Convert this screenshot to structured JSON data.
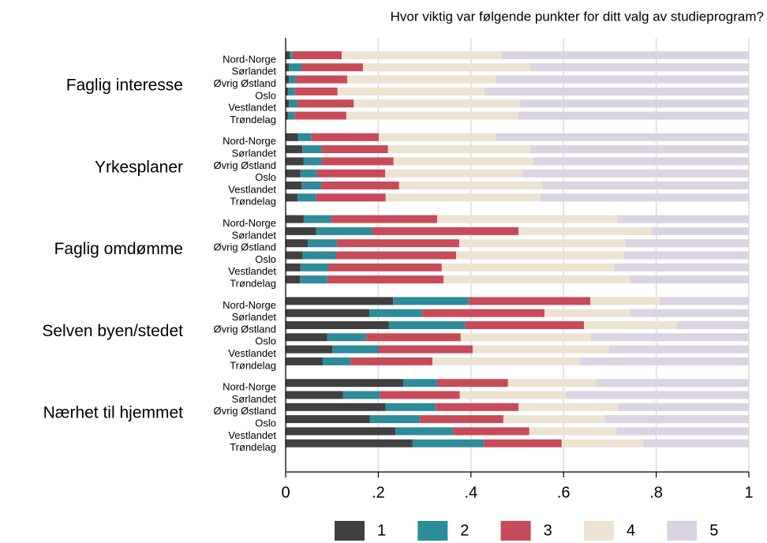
{
  "chart_data": {
    "type": "stacked-bar",
    "title": "Hvor viktig var følgende punkter for ditt valg av studieprogram?",
    "groups": [
      "Faglig interesse",
      "Yrkesplaner",
      "Faglig omdømme",
      "Selven byen/stedet",
      "Nærhet til hjemmet"
    ],
    "categories": [
      "Nord-Norge",
      "Sørlandet",
      "Øvrig Østland",
      "Oslo",
      "Vestlandet",
      "Trøndelag"
    ],
    "xlim": [
      0,
      1
    ],
    "xticks": [
      0,
      {
        "value": 0.2,
        "label": ".2"
      },
      {
        "value": 0.4,
        "label": ".4"
      },
      {
        "value": 0.6,
        "label": ".6"
      },
      {
        "value": 0.8,
        "label": ".8"
      },
      1
    ],
    "grid": true,
    "series": [
      {
        "name": "1",
        "color": "#404040",
        "values": [
          [
            0.009,
            0.007,
            0.007,
            0.005,
            0.007,
            0.005
          ],
          [
            0.027,
            0.036,
            0.039,
            0.032,
            0.034,
            0.026
          ],
          [
            0.039,
            0.066,
            0.048,
            0.037,
            0.032,
            0.031
          ],
          [
            0.232,
            0.181,
            0.223,
            0.09,
            0.101,
            0.08
          ],
          [
            0.254,
            0.124,
            0.216,
            0.182,
            0.237,
            0.274
          ]
        ]
      },
      {
        "name": "2",
        "color": "#2e8b9a",
        "values": [
          [
            0.006,
            0.027,
            0.015,
            0.015,
            0.019,
            0.015
          ],
          [
            0.028,
            0.041,
            0.039,
            0.036,
            0.043,
            0.04
          ],
          [
            0.06,
            0.121,
            0.063,
            0.072,
            0.06,
            0.059
          ],
          [
            0.163,
            0.114,
            0.165,
            0.084,
            0.1,
            0.06
          ],
          [
            0.073,
            0.08,
            0.108,
            0.108,
            0.124,
            0.154
          ]
        ]
      },
      {
        "name": "3",
        "color": "#c84b5a",
        "values": [
          [
            0.106,
            0.133,
            0.111,
            0.092,
            0.121,
            0.111
          ],
          [
            0.146,
            0.144,
            0.155,
            0.147,
            0.168,
            0.15
          ],
          [
            0.228,
            0.316,
            0.264,
            0.259,
            0.245,
            0.251
          ],
          [
            0.263,
            0.264,
            0.256,
            0.204,
            0.203,
            0.177
          ],
          [
            0.153,
            0.172,
            0.179,
            0.18,
            0.165,
            0.168
          ]
        ]
      },
      {
        "name": "4",
        "color": "#ede3d3",
        "values": [
          [
            0.346,
            0.361,
            0.322,
            0.317,
            0.359,
            0.37
          ],
          [
            0.252,
            0.307,
            0.302,
            0.296,
            0.31,
            0.334
          ],
          [
            0.389,
            0.287,
            0.358,
            0.363,
            0.373,
            0.402
          ],
          [
            0.149,
            0.185,
            0.201,
            0.281,
            0.294,
            0.317
          ],
          [
            0.19,
            0.229,
            0.214,
            0.22,
            0.188,
            0.176
          ]
        ]
      },
      {
        "name": "5",
        "color": "#d9d3e2",
        "values": [
          [
            0.533,
            0.472,
            0.545,
            0.571,
            0.494,
            0.499
          ],
          [
            0.547,
            0.472,
            0.465,
            0.489,
            0.445,
            0.45
          ],
          [
            0.284,
            0.21,
            0.267,
            0.269,
            0.29,
            0.257
          ],
          [
            0.193,
            0.256,
            0.155,
            0.341,
            0.302,
            0.366
          ],
          [
            0.33,
            0.395,
            0.283,
            0.31,
            0.286,
            0.228
          ]
        ]
      }
    ]
  }
}
